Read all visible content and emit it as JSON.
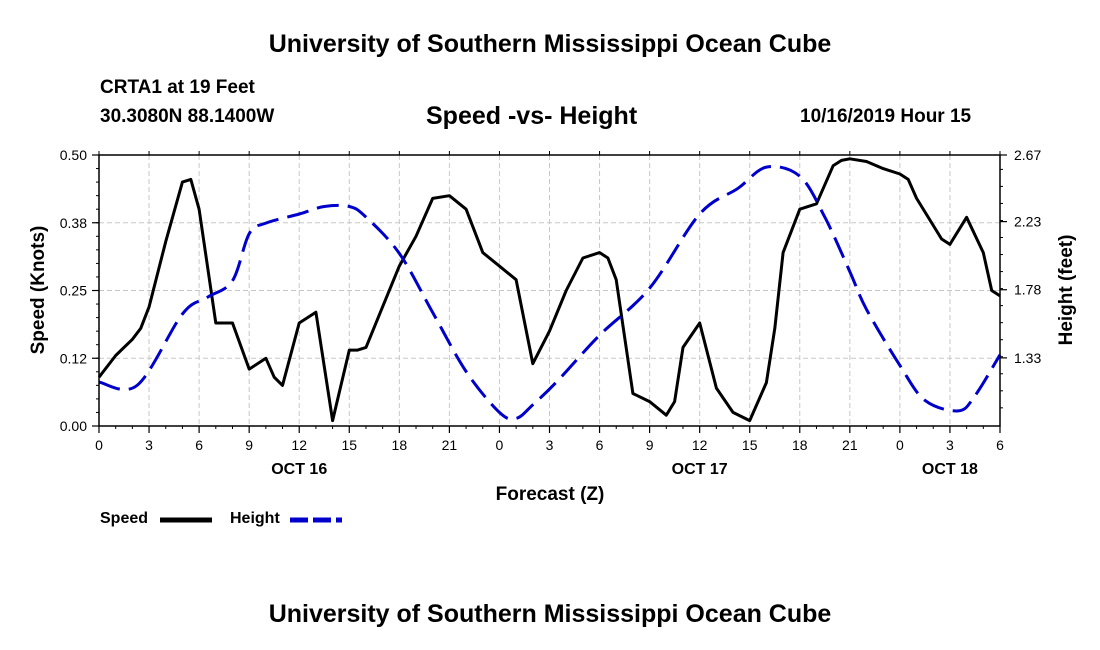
{
  "header": {
    "title": "University of Southern Mississippi Ocean Cube",
    "station": "CRTA1 at 19 Feet",
    "coordinates": "30.3080N 88.1400W",
    "subtitle": "Speed -vs- Height",
    "datetime": "10/16/2019 Hour 15"
  },
  "footer": {
    "title": "University of Southern Mississippi Ocean Cube"
  },
  "legend": {
    "speed_label": "Speed",
    "height_label": "Height",
    "speed_color": "#000000",
    "height_color": "#0000cc"
  },
  "chart_data": {
    "type": "line",
    "title": "Speed -vs- Height",
    "xlabel": "Forecast (Z)",
    "ylabel_left": "Speed (Knots)",
    "ylabel_right": "Height (feet)",
    "xlim": [
      0,
      54
    ],
    "ylim_left": [
      0,
      0.5
    ],
    "ylim_right": [
      0.88,
      2.67
    ],
    "x_tick_values": [
      0,
      3,
      6,
      9,
      12,
      15,
      18,
      21,
      24,
      27,
      30,
      33,
      36,
      39,
      42,
      45,
      48,
      51,
      54
    ],
    "x_tick_labels": [
      "0",
      "3",
      "6",
      "9",
      "12",
      "15",
      "18",
      "21",
      "0",
      "3",
      "6",
      "9",
      "12",
      "15",
      "18",
      "21",
      "0",
      "3",
      "6"
    ],
    "date_labels": [
      {
        "x": 12,
        "label": "OCT 16"
      },
      {
        "x": 36,
        "label": "OCT 17"
      },
      {
        "x": 51,
        "label": "OCT 18"
      }
    ],
    "y_left_ticks": [
      0.0,
      0.125,
      0.25,
      0.375,
      0.5
    ],
    "y_left_tick_labels": [
      "0.00",
      "0.12",
      "0.25",
      "0.38",
      "0.50"
    ],
    "y_right_ticks": [
      1.33,
      1.78,
      2.23,
      2.67
    ],
    "y_right_tick_labels": [
      "1.33",
      "1.78",
      "2.23",
      "2.67"
    ],
    "grid": true,
    "series": [
      {
        "name": "Speed",
        "axis": "left",
        "style": "solid",
        "color": "#000000",
        "x": [
          0,
          1,
          2,
          2.5,
          3,
          4,
          5,
          5.5,
          6,
          7,
          8,
          9,
          10,
          10.5,
          11,
          12,
          13,
          14,
          15,
          15.5,
          16,
          17,
          18,
          19,
          20,
          21,
          22,
          23,
          24,
          25,
          26,
          27,
          28,
          29,
          30,
          30.5,
          31,
          32,
          33,
          34,
          34.5,
          35,
          36,
          37,
          38,
          39,
          40,
          40.5,
          41,
          42,
          43,
          44,
          44.5,
          45,
          46,
          47,
          48,
          48.5,
          49,
          50,
          50.5,
          51,
          52,
          53,
          53.5,
          54
        ],
        "y": [
          0.09,
          0.13,
          0.16,
          0.18,
          0.22,
          0.34,
          0.45,
          0.455,
          0.4,
          0.19,
          0.19,
          0.105,
          0.125,
          0.09,
          0.075,
          0.19,
          0.21,
          0.01,
          0.14,
          0.14,
          0.145,
          0.22,
          0.295,
          0.35,
          0.42,
          0.425,
          0.4,
          0.32,
          0.295,
          0.27,
          0.115,
          0.175,
          0.25,
          0.31,
          0.32,
          0.31,
          0.27,
          0.06,
          0.045,
          0.02,
          0.045,
          0.145,
          0.19,
          0.07,
          0.025,
          0.01,
          0.08,
          0.18,
          0.32,
          0.4,
          0.41,
          0.48,
          0.49,
          0.493,
          0.488,
          0.475,
          0.465,
          0.455,
          0.42,
          0.37,
          0.345,
          0.335,
          0.385,
          0.32,
          0.25,
          0.24
        ],
        "smooth": false
      },
      {
        "name": "Height",
        "axis": "right",
        "style": "dashed",
        "color": "#0000cc",
        "x": [
          0,
          2.3,
          5,
          6.5,
          8,
          9,
          10,
          12,
          13.5,
          15,
          16,
          18,
          20,
          22,
          24,
          25,
          26,
          27.5,
          30,
          33,
          36,
          38.3,
          40,
          42,
          43.5,
          45,
          46,
          48,
          49.5,
          51.5,
          52.5,
          54
        ],
        "y": [
          1.17,
          1.15,
          1.62,
          1.73,
          1.84,
          2.15,
          2.22,
          2.28,
          2.33,
          2.33,
          2.26,
          2.02,
          1.63,
          1.24,
          0.97,
          0.93,
          1.02,
          1.18,
          1.48,
          1.79,
          2.28,
          2.45,
          2.59,
          2.53,
          2.26,
          1.9,
          1.65,
          1.28,
          1.05,
          0.98,
          1.08,
          1.35
        ],
        "smooth": true
      }
    ]
  }
}
